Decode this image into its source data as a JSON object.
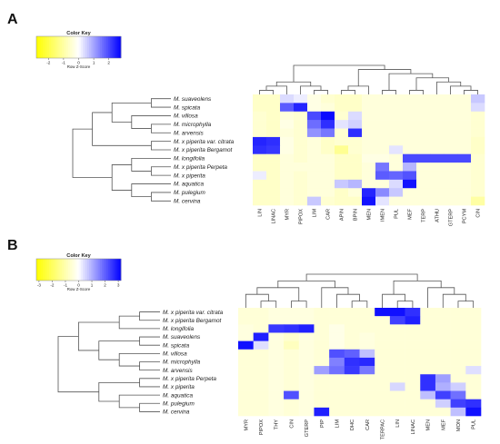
{
  "chart_data": [
    {
      "type": "heatmap",
      "panel": "A",
      "key_title": "Color Key",
      "key_xlabel": "Row Z-Score",
      "key_ticks": [
        -2,
        -1,
        0,
        1,
        2
      ],
      "key_range": [
        -2.8,
        2.8
      ],
      "colors": {
        "low": "#ffff00",
        "mid": "#ffffff",
        "high": "#0000ff"
      },
      "rows": [
        "M. suaveolens",
        "M. spicata",
        "M. villosa",
        "M. microphylla",
        "M. arvensis",
        "M. x piperita var. citrata",
        "M. x piperita Bergamot",
        "M. longifolia",
        "M. x piperita Perpeta",
        "M. x piperita",
        "M. aquatica",
        "M. pulegium",
        "M. cervina"
      ],
      "columns": [
        "LIN",
        "LINAC",
        "MYR",
        "PIPOX",
        "LIM",
        "CAR",
        "APIN",
        "BPIN",
        "MEN",
        "IMEN",
        "PUL",
        "MEF",
        "TERP",
        "ATHU",
        "GTERP",
        "PCYM",
        "CIN"
      ],
      "values": [
        [
          -0.6,
          -0.6,
          0.4,
          0.2,
          -0.3,
          -0.5,
          -0.6,
          -0.6,
          -0.4,
          -0.4,
          -0.4,
          -0.4,
          -0.4,
          -0.4,
          -0.4,
          -0.4,
          0.6
        ],
        [
          -0.6,
          -0.6,
          1.8,
          2.4,
          -0.3,
          -0.4,
          -0.6,
          -0.6,
          -0.4,
          -0.4,
          -0.4,
          -0.4,
          -0.4,
          -0.4,
          -0.4,
          -0.4,
          0.4
        ],
        [
          -0.5,
          -0.6,
          -0.4,
          -0.5,
          2.0,
          2.7,
          -0.5,
          0.4,
          -0.4,
          -0.4,
          -0.4,
          -0.4,
          -0.4,
          -0.4,
          -0.4,
          -0.4,
          -0.5
        ],
        [
          -0.5,
          -0.6,
          -0.3,
          -0.5,
          1.6,
          2.3,
          0.3,
          0.5,
          -0.4,
          -0.4,
          -0.4,
          -0.4,
          -0.4,
          -0.4,
          -0.4,
          -0.4,
          -0.5
        ],
        [
          -0.5,
          -0.6,
          -0.4,
          -0.5,
          1.2,
          1.5,
          -0.5,
          2.3,
          -0.4,
          -0.4,
          -0.4,
          -0.4,
          -0.4,
          -0.4,
          -0.4,
          -0.4,
          -0.5
        ],
        [
          2.4,
          2.3,
          -0.3,
          -0.5,
          -0.4,
          -0.6,
          -0.5,
          -0.5,
          -0.4,
          -0.4,
          -0.4,
          -0.4,
          -0.4,
          -0.4,
          -0.4,
          -0.4,
          -0.6
        ],
        [
          2.3,
          2.2,
          -0.3,
          -0.5,
          -0.4,
          -0.6,
          -1.2,
          -0.5,
          -0.4,
          -0.4,
          0.3,
          -0.4,
          -0.4,
          -0.4,
          -0.4,
          -0.4,
          -0.6
        ],
        [
          -0.6,
          -0.6,
          -0.4,
          -0.5,
          -0.4,
          -0.4,
          -0.6,
          -0.6,
          -0.3,
          -0.3,
          -0.4,
          2.0,
          2.0,
          2.0,
          2.0,
          2.0,
          -0.5
        ],
        [
          -0.6,
          -0.6,
          -0.4,
          -0.4,
          -0.4,
          -0.4,
          -0.6,
          -0.6,
          -0.4,
          1.5,
          -0.4,
          0.8,
          -0.4,
          -0.4,
          -0.4,
          -0.4,
          -0.5
        ],
        [
          0.2,
          -0.6,
          -0.4,
          -0.5,
          -0.4,
          -0.4,
          -0.6,
          -0.6,
          -0.4,
          1.8,
          1.7,
          1.9,
          -0.4,
          -0.4,
          -0.4,
          -0.4,
          -0.5
        ],
        [
          -0.6,
          -0.6,
          -0.4,
          -0.5,
          -0.4,
          -0.4,
          0.6,
          0.8,
          -0.4,
          -0.4,
          0.4,
          2.6,
          -0.4,
          -0.4,
          -0.4,
          -0.4,
          -0.5
        ],
        [
          -0.6,
          -0.6,
          -0.4,
          -0.5,
          -0.4,
          -0.4,
          -0.6,
          -0.4,
          2.4,
          1.3,
          0.6,
          -0.4,
          -0.4,
          -0.4,
          -0.4,
          -0.4,
          -0.5
        ],
        [
          -0.6,
          -0.6,
          -0.4,
          -0.5,
          0.6,
          -0.5,
          -0.6,
          -0.6,
          2.6,
          0.3,
          -0.4,
          -0.4,
          -0.4,
          -0.4,
          -0.4,
          -0.4,
          -1.0
        ]
      ]
    },
    {
      "type": "heatmap",
      "panel": "B",
      "key_title": "Color Key",
      "key_xlabel": "Row Z-Score",
      "key_ticks": [
        -3,
        -2,
        -1,
        0,
        1,
        2,
        3
      ],
      "key_range": [
        -3.2,
        3.2
      ],
      "colors": {
        "low": "#ffff00",
        "mid": "#ffffff",
        "high": "#0000ff"
      },
      "rows": [
        "M. x piperita var. citrata",
        "M. x piperita Bergamot",
        "M. longifolia",
        "M. suaveolens",
        "M. spicata",
        "M. villosa",
        "M. microphylla",
        "M. arvensis",
        "M. x piperita Perpeta",
        "M. x piperita",
        "M. aquatica",
        "M. pulegium",
        "M. cervina"
      ],
      "columns": [
        "MYR",
        "PIPOX",
        "THY",
        "CIN",
        "GTERP",
        "PIP",
        "LIM",
        "DHC",
        "CAR",
        "TERPAC",
        "LIN",
        "LINAC",
        "MEN",
        "MEF",
        "MON",
        "PUL"
      ],
      "values": [
        [
          -0.5,
          -0.5,
          -0.4,
          -0.4,
          -0.4,
          -0.5,
          -0.5,
          -0.5,
          -0.5,
          3.0,
          3.0,
          2.6,
          -0.5,
          -0.5,
          -0.5,
          -0.5
        ],
        [
          -0.5,
          -0.5,
          -0.4,
          -0.4,
          -0.4,
          -0.5,
          -0.5,
          -0.5,
          -0.5,
          -0.5,
          2.4,
          2.8,
          -0.5,
          -0.5,
          -0.5,
          -0.5
        ],
        [
          -0.4,
          -0.5,
          2.5,
          2.6,
          2.8,
          -0.5,
          -0.3,
          -0.5,
          -0.5,
          -0.5,
          -0.5,
          -0.5,
          -0.5,
          -0.5,
          -0.5,
          -0.5
        ],
        [
          -0.4,
          2.8,
          -0.4,
          -0.6,
          -0.4,
          -0.5,
          -0.3,
          -0.5,
          -0.4,
          -0.5,
          -0.5,
          -0.5,
          -0.5,
          -0.5,
          -0.5,
          -0.5
        ],
        [
          3.0,
          0.4,
          -0.4,
          -0.8,
          -0.4,
          -0.5,
          -0.3,
          -0.5,
          -0.4,
          -0.5,
          -0.5,
          -0.5,
          -0.5,
          -0.5,
          -0.5,
          -0.5
        ],
        [
          -0.5,
          -0.5,
          -0.4,
          -0.5,
          -0.4,
          -0.5,
          2.2,
          2.0,
          0.8,
          -0.5,
          -0.5,
          -0.5,
          -0.5,
          -0.5,
          -0.5,
          -0.5
        ],
        [
          -0.5,
          -0.5,
          -0.4,
          -0.5,
          -0.4,
          -0.5,
          1.6,
          2.6,
          2.7,
          -0.5,
          -0.5,
          -0.5,
          -0.5,
          -0.5,
          -0.5,
          -0.5
        ],
        [
          -0.5,
          -0.5,
          -0.4,
          -0.5,
          -0.4,
          1.2,
          1.8,
          2.5,
          1.7,
          -0.5,
          -0.5,
          -0.5,
          -0.5,
          -0.5,
          -0.5,
          0.4
        ],
        [
          -0.5,
          -0.5,
          -0.4,
          -0.5,
          -0.4,
          -0.5,
          -0.5,
          -0.5,
          -0.5,
          -0.5,
          -0.5,
          -0.5,
          2.6,
          1.2,
          -0.5,
          -0.5
        ],
        [
          -0.5,
          -0.5,
          -0.4,
          -0.5,
          -0.4,
          -0.5,
          -0.5,
          -0.5,
          -0.5,
          -0.5,
          0.5,
          -0.5,
          2.6,
          1.0,
          0.6,
          -0.5
        ],
        [
          -0.5,
          -0.5,
          -0.4,
          2.2,
          -0.4,
          -0.5,
          -0.5,
          -0.5,
          -0.5,
          -0.5,
          -0.5,
          -0.5,
          0.8,
          2.4,
          1.8,
          -0.5
        ],
        [
          -0.5,
          -0.5,
          -0.4,
          -0.5,
          -0.4,
          -0.5,
          -0.5,
          -0.5,
          -0.5,
          -0.5,
          -0.5,
          -0.5,
          -0.5,
          0.6,
          2.4,
          2.6
        ],
        [
          -0.5,
          -0.5,
          -0.4,
          -0.5,
          -0.4,
          2.8,
          -0.5,
          -0.5,
          -0.5,
          -0.5,
          -0.5,
          -0.5,
          -0.5,
          -0.5,
          0.8,
          3.0
        ]
      ]
    }
  ],
  "panel_labels": [
    "A",
    "B"
  ]
}
